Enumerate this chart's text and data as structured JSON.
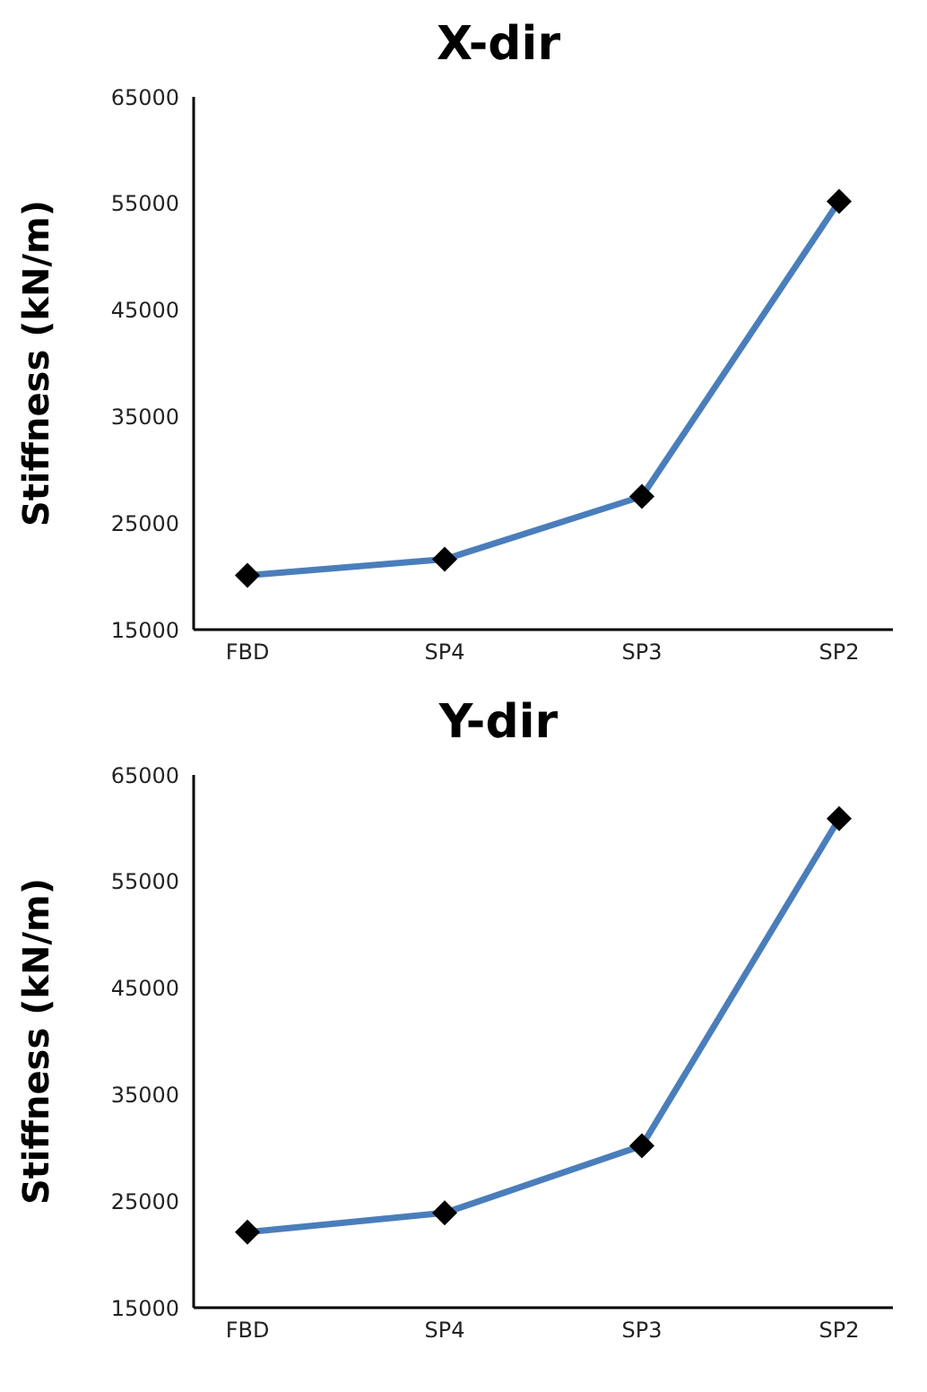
{
  "chart_data": [
    {
      "type": "line",
      "title": "X-dir",
      "ylabel": "Stiffness (kN/m)",
      "categories": [
        "FBD",
        "SP4",
        "SP3",
        "SP2"
      ],
      "series": [
        {
          "color": "#4a7ebb",
          "values": [
            20100,
            21600,
            27500,
            55200
          ]
        }
      ],
      "ylim": [
        15000,
        65000
      ],
      "yticks": [
        15000,
        25000,
        35000,
        45000,
        55000,
        65000
      ],
      "grid": false,
      "legend": false,
      "marker": "diamond",
      "line_style": "solid"
    },
    {
      "type": "line",
      "title": "Y-dir",
      "ylabel": "Stiffness (kN/m)",
      "categories": [
        "FBD",
        "SP4",
        "SP3",
        "SP2"
      ],
      "series": [
        {
          "color": "#4a7ebb",
          "values": [
            22100,
            23900,
            30200,
            60900
          ]
        }
      ],
      "ylim": [
        15000,
        65000
      ],
      "yticks": [
        15000,
        25000,
        35000,
        45000,
        55000,
        65000
      ],
      "grid": false,
      "legend": false,
      "marker": "diamond",
      "line_style": "solid"
    }
  ]
}
